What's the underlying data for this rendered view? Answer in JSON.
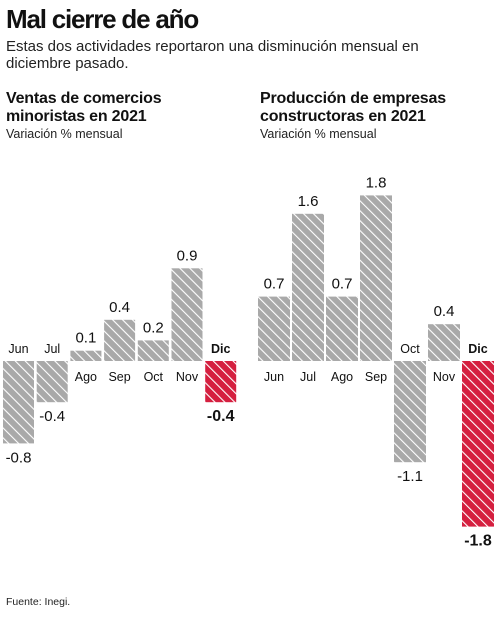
{
  "header": {
    "title": "Mal cierre de año",
    "subtitle": "Estas dos actividades reportaron una disminución mensual en diciembre pasado."
  },
  "source": "Fuente: Inegi.",
  "colors": {
    "bar": "#a9a9a9",
    "bar_stripe": "#ffffff",
    "highlight": "#d51f3f"
  },
  "chart_data": [
    {
      "type": "bar",
      "title": "Ventas de comercios minoristas en 2021",
      "ylabel": "Variación % mensual",
      "categories": [
        "Jun",
        "Jul",
        "Ago",
        "Sep",
        "Oct",
        "Nov",
        "Dic"
      ],
      "values": [
        -0.8,
        -0.4,
        0.1,
        0.4,
        0.2,
        0.9,
        -0.4
      ],
      "value_labels": [
        "-0.8",
        "-0.4",
        "0.1",
        "0.4",
        "0.2",
        "0.9",
        "-0.4"
      ],
      "highlight_index": 6,
      "grid": false
    },
    {
      "type": "bar",
      "title": "Producción de empresas constructoras en 2021",
      "ylabel": "Variación % mensual",
      "categories": [
        "Jun",
        "Jul",
        "Ago",
        "Sep",
        "Oct",
        "Nov",
        "Dic"
      ],
      "values": [
        0.7,
        1.6,
        0.7,
        1.8,
        -1.1,
        0.4,
        -1.8
      ],
      "value_labels": [
        "0.7",
        "1.6",
        "0.7",
        "1.8",
        "-1.1",
        "0.4",
        "-1.8"
      ],
      "highlight_index": 6,
      "grid": false
    }
  ]
}
